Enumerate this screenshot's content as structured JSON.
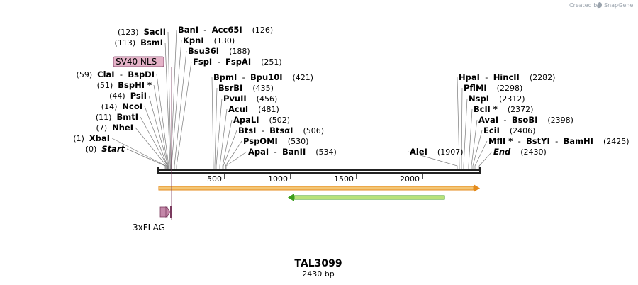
{
  "map": {
    "name": "TAL3099",
    "length_label": "2430 bp",
    "length_bp": 2430,
    "credit": "Created by",
    "brand": "SnapGene",
    "axis_ticks": [
      {
        "bp": 500,
        "label": "500"
      },
      {
        "bp": 1000,
        "label": "1000"
      },
      {
        "bp": 1500,
        "label": "1500"
      },
      {
        "bp": 2000,
        "label": "2000"
      }
    ],
    "colors": {
      "backbone": "#222222",
      "orf_fill": "#f3c676",
      "orf_stroke": "#e48b1c",
      "orf2_fill": "#b8e27a",
      "orf2_stroke": "#3c9e1c",
      "sv40_fill": "#e5b3c8",
      "flag_fill": "#c387a8",
      "flag_stroke": "#7a3a5e",
      "leader": "#7a7a7a"
    }
  },
  "features": {
    "sv40_nls": "SV40 NLS",
    "flag": "3xFLAG"
  },
  "sites_left": [
    {
      "bp": 0,
      "pos": "(0)",
      "names": [
        "Start"
      ],
      "italic": true
    },
    {
      "bp": 1,
      "pos": "(1)",
      "names": [
        "XbaI"
      ]
    },
    {
      "bp": 7,
      "pos": "(7)",
      "names": [
        "NheI"
      ]
    },
    {
      "bp": 11,
      "pos": "(11)",
      "names": [
        "BmtI"
      ]
    },
    {
      "bp": 14,
      "pos": "(14)",
      "names": [
        "NcoI"
      ]
    },
    {
      "bp": 44,
      "pos": "(44)",
      "names": [
        "PsiI"
      ]
    },
    {
      "bp": 51,
      "pos": "(51)",
      "names": [
        "BspHI *"
      ]
    },
    {
      "bp": 59,
      "pos": "(59)",
      "names": [
        "ClaI",
        "BspDI"
      ]
    },
    {
      "bp": 113,
      "pos": "(113)",
      "names": [
        "BsmI"
      ]
    },
    {
      "bp": 123,
      "pos": "(123)",
      "names": [
        "SacII"
      ]
    }
  ],
  "sites_right": [
    {
      "bp": 126,
      "pos": "(126)",
      "names": [
        "BanI",
        "Acc65I"
      ]
    },
    {
      "bp": 130,
      "pos": "(130)",
      "names": [
        "KpnI"
      ]
    },
    {
      "bp": 188,
      "pos": "(188)",
      "names": [
        "Bsu36I"
      ]
    },
    {
      "bp": 251,
      "pos": "(251)",
      "names": [
        "FspI",
        "FspAI"
      ]
    },
    {
      "bp": 421,
      "pos": "(421)",
      "names": [
        "BpmI",
        "Bpu10I"
      ]
    },
    {
      "bp": 435,
      "pos": "(435)",
      "names": [
        "BsrBI"
      ]
    },
    {
      "bp": 456,
      "pos": "(456)",
      "names": [
        "PvuII"
      ]
    },
    {
      "bp": 481,
      "pos": "(481)",
      "names": [
        "AcuI"
      ]
    },
    {
      "bp": 502,
      "pos": "(502)",
      "names": [
        "ApaLI"
      ]
    },
    {
      "bp": 506,
      "pos": "(506)",
      "names": [
        "BtsI",
        "BtsαI"
      ]
    },
    {
      "bp": 530,
      "pos": "(530)",
      "names": [
        "PspOMI"
      ]
    },
    {
      "bp": 534,
      "pos": "(534)",
      "names": [
        "ApaI",
        "BanII"
      ]
    },
    {
      "bp": 1907,
      "pos": "(1907)",
      "names": [
        "AleI"
      ],
      "pos_after": false
    },
    {
      "bp": 2282,
      "pos": "(2282)",
      "names": [
        "HpaI",
        "HincII"
      ]
    },
    {
      "bp": 2298,
      "pos": "(2298)",
      "names": [
        "PflMI"
      ]
    },
    {
      "bp": 2312,
      "pos": "(2312)",
      "names": [
        "NspI"
      ]
    },
    {
      "bp": 2372,
      "pos": "(2372)",
      "names": [
        "BclI *"
      ]
    },
    {
      "bp": 2398,
      "pos": "(2398)",
      "names": [
        "AvaI",
        "BsoBI"
      ]
    },
    {
      "bp": 2406,
      "pos": "(2406)",
      "names": [
        "EciI"
      ]
    },
    {
      "bp": 2425,
      "pos": "(2425)",
      "names": [
        "MflI *",
        "BstYI",
        "BamHI"
      ]
    },
    {
      "bp": 2430,
      "pos": "(2430)",
      "names": [
        "End"
      ],
      "italic": true
    }
  ]
}
